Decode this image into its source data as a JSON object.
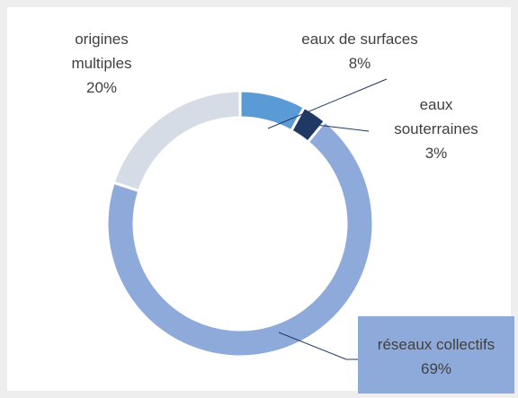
{
  "chart_data": {
    "type": "donut",
    "categories": [
      "eaux de surfaces",
      "eaux souterraines",
      "réseaux collectifs",
      "origines multiples"
    ],
    "values": [
      8,
      3,
      69,
      20
    ],
    "value_labels": [
      "8%",
      "3%",
      "69%",
      "20%"
    ],
    "colors": [
      "#5b9bd5",
      "#1f3864",
      "#8eaadb",
      "#d6dce5"
    ]
  }
}
